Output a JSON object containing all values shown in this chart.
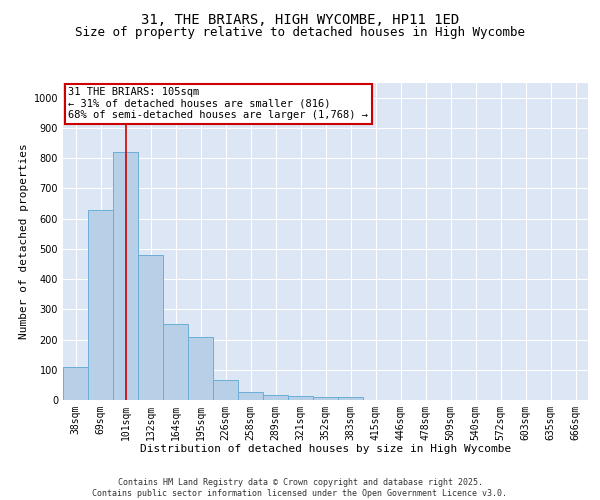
{
  "title_line1": "31, THE BRIARS, HIGH WYCOMBE, HP11 1ED",
  "title_line2": "Size of property relative to detached houses in High Wycombe",
  "xlabel": "Distribution of detached houses by size in High Wycombe",
  "ylabel": "Number of detached properties",
  "categories": [
    "38sqm",
    "69sqm",
    "101sqm",
    "132sqm",
    "164sqm",
    "195sqm",
    "226sqm",
    "258sqm",
    "289sqm",
    "321sqm",
    "352sqm",
    "383sqm",
    "415sqm",
    "446sqm",
    "478sqm",
    "509sqm",
    "540sqm",
    "572sqm",
    "603sqm",
    "635sqm",
    "666sqm"
  ],
  "values": [
    110,
    630,
    820,
    480,
    250,
    210,
    65,
    25,
    18,
    12,
    10,
    10,
    0,
    0,
    0,
    0,
    0,
    0,
    0,
    0,
    0
  ],
  "bar_color": "#b8cfe8",
  "bar_edge_color": "#6baed6",
  "background_color": "#dce6f5",
  "grid_color": "#ffffff",
  "annotation_line1": "31 THE BRIARS: 105sqm",
  "annotation_line2": "← 31% of detached houses are smaller (816)",
  "annotation_line3": "68% of semi-detached houses are larger (1,768) →",
  "annotation_box_color": "#ffffff",
  "annotation_box_edge_color": "#cc0000",
  "vline_x": 2,
  "vline_color": "#cc0000",
  "ylim": [
    0,
    1050
  ],
  "yticks": [
    0,
    100,
    200,
    300,
    400,
    500,
    600,
    700,
    800,
    900,
    1000
  ],
  "footer_text": "Contains HM Land Registry data © Crown copyright and database right 2025.\nContains public sector information licensed under the Open Government Licence v3.0.",
  "title_fontsize": 10,
  "subtitle_fontsize": 9,
  "axis_label_fontsize": 8,
  "tick_fontsize": 7,
  "annotation_fontsize": 7.5,
  "footer_fontsize": 6
}
